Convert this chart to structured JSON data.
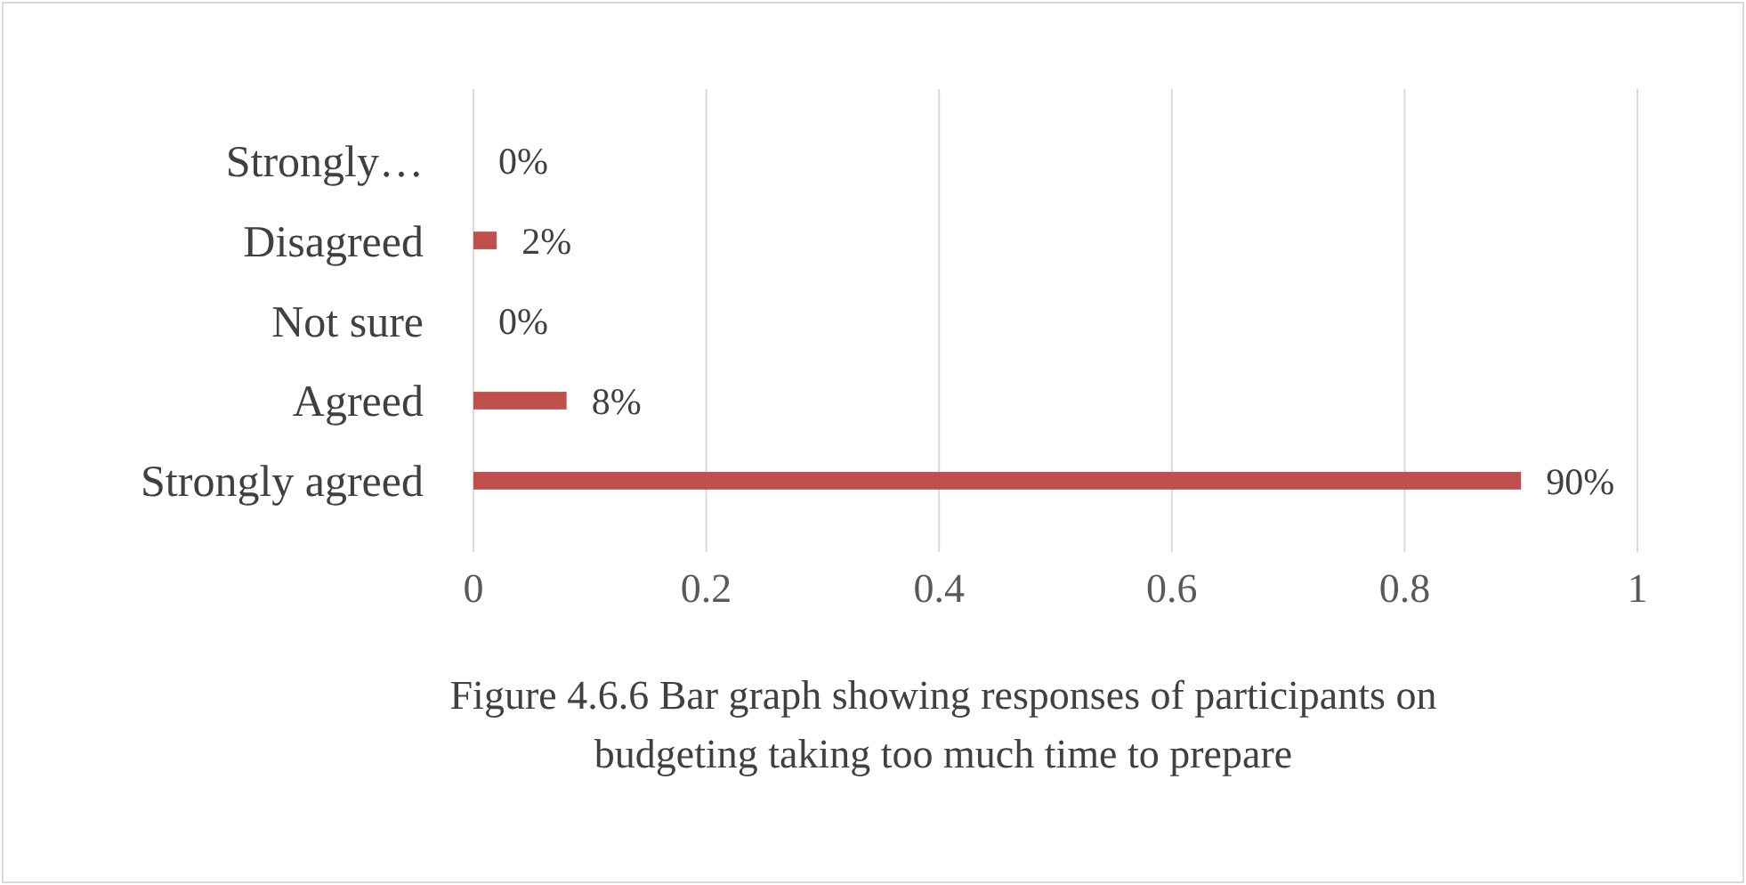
{
  "chart_data": {
    "type": "bar",
    "orientation": "horizontal",
    "categories": [
      "Strongly…",
      "Disagreed",
      "Not sure",
      "Agreed",
      "Strongly agreed"
    ],
    "values": [
      0,
      0.02,
      0,
      0.08,
      0.9
    ],
    "value_labels": [
      "0%",
      "2%",
      "0%",
      "8%",
      "90%"
    ],
    "color": "#c0504d",
    "xlim": [
      0,
      1
    ],
    "xticks": [
      0,
      0.2,
      0.4,
      0.6,
      0.8,
      1
    ],
    "grid": "x",
    "annotations": [
      "Figure 4.6.6 Bar graph showing responses of participants on budgeting taking too much time to prepare"
    ]
  }
}
